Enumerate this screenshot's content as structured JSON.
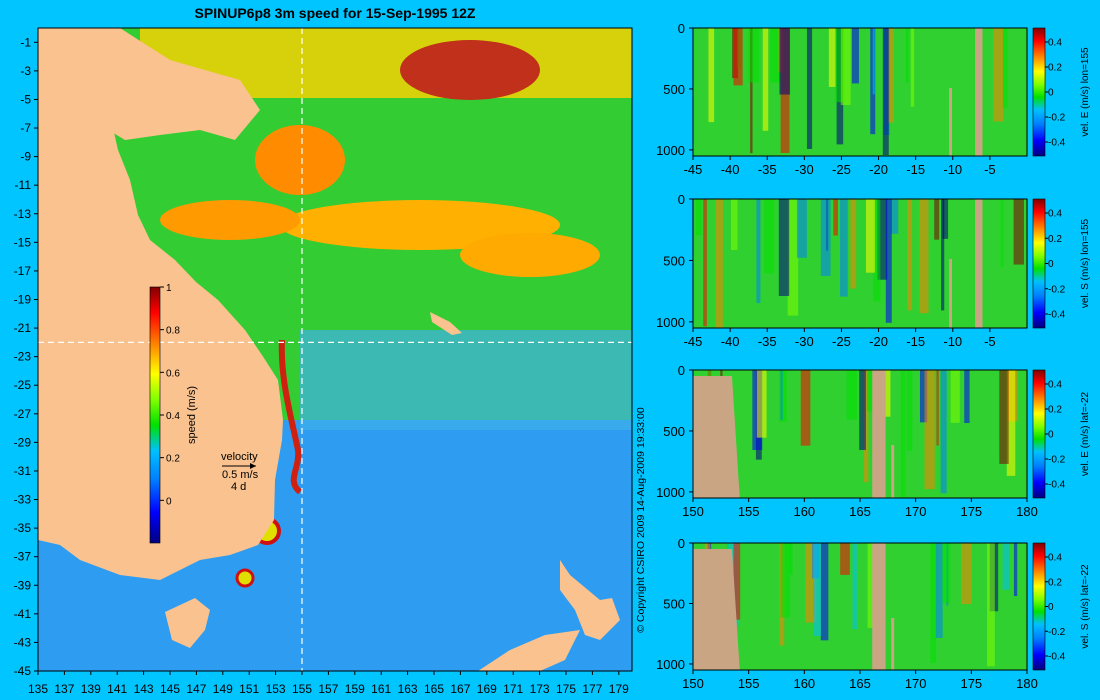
{
  "title": "SPINUP6p8 3m speed for 15-Sep-1995 12Z",
  "copyright": "© Copyright CSIRO 2009  14-Aug-2009 19:33:00",
  "colors": {
    "background": "#00c5ff",
    "land": "#f9c28f",
    "section_land": "#c9a583",
    "crosshair": "#ffffff",
    "colormap": [
      "#000080",
      "#0000ff",
      "#0080ff",
      "#00c0ff",
      "#00e000",
      "#80ff00",
      "#ffff00",
      "#ff8000",
      "#ff0000",
      "#800000"
    ]
  },
  "chart_data": [
    {
      "type": "heatmap",
      "id": "map",
      "xlabel": "",
      "ylabel": "",
      "x_ticks": [
        135,
        137,
        139,
        141,
        143,
        145,
        147,
        149,
        151,
        153,
        155,
        157,
        159,
        161,
        163,
        165,
        167,
        169,
        171,
        173,
        175,
        177,
        179
      ],
      "y_ticks": [
        -1,
        -3,
        -5,
        -7,
        -9,
        -11,
        -13,
        -15,
        -17,
        -19,
        -21,
        -23,
        -25,
        -27,
        -29,
        -31,
        -33,
        -35,
        -37,
        -39,
        -41,
        -43,
        -45
      ],
      "xlim": [
        135,
        180
      ],
      "ylim": [
        -45,
        0
      ],
      "crosshair": {
        "lon": 155,
        "lat": -22
      },
      "colorbar": {
        "label": "speed (m/s)",
        "ticks": [
          "0",
          "0.2",
          "0.4",
          "0.6",
          "0.8",
          "1"
        ],
        "range": [
          -0.2,
          1
        ]
      },
      "velocity_key": {
        "title": "velocity",
        "speed": "0.5 m/s",
        "duration": "4 d"
      }
    },
    {
      "type": "heatmap",
      "id": "section1",
      "x_ticks": [
        "-45",
        "-40",
        "-35",
        "-30",
        "-25",
        "-20",
        "-15",
        "-10",
        "-5"
      ],
      "y_ticks": [
        "0",
        "500",
        "1000"
      ],
      "xlim": [
        -45,
        0
      ],
      "ylim": [
        0,
        1050
      ],
      "colorbar": {
        "label": "vel. E (m/s) lon=155",
        "ticks": [
          "0.4",
          "0.2",
          "0",
          "-0.2",
          "-0.4"
        ]
      }
    },
    {
      "type": "heatmap",
      "id": "section2",
      "x_ticks": [
        "-45",
        "-40",
        "-35",
        "-30",
        "-25",
        "-20",
        "-15",
        "-10",
        "-5"
      ],
      "y_ticks": [
        "0",
        "500",
        "1000"
      ],
      "xlim": [
        -45,
        0
      ],
      "ylim": [
        0,
        1050
      ],
      "colorbar": {
        "label": "vel. S (m/s) lon=155",
        "ticks": [
          "0.4",
          "0.2",
          "0",
          "-0.2",
          "-0.4"
        ]
      }
    },
    {
      "type": "heatmap",
      "id": "section3",
      "x_ticks": [
        "150",
        "155",
        "160",
        "165",
        "170",
        "175",
        "180"
      ],
      "y_ticks": [
        "0",
        "500",
        "1000"
      ],
      "xlim": [
        150,
        180
      ],
      "ylim": [
        0,
        1050
      ],
      "colorbar": {
        "label": "vel. E (m/s) lat=-22",
        "ticks": [
          "0.4",
          "0.2",
          "0",
          "-0.2",
          "-0.4"
        ]
      }
    },
    {
      "type": "heatmap",
      "id": "section4",
      "x_ticks": [
        "150",
        "155",
        "160",
        "165",
        "170",
        "175",
        "180"
      ],
      "y_ticks": [
        "0",
        "500",
        "1000"
      ],
      "xlim": [
        150,
        180
      ],
      "ylim": [
        0,
        1050
      ],
      "colorbar": {
        "label": "vel. S (m/s) lat=-22",
        "ticks": [
          "0.4",
          "0.2",
          "0",
          "-0.2",
          "-0.4"
        ]
      }
    }
  ]
}
